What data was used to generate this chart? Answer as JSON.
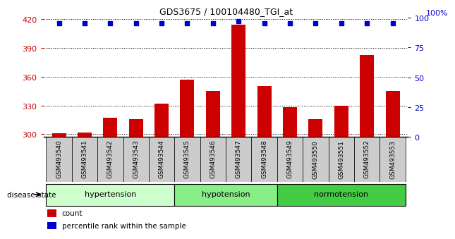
{
  "title": "GDS3675 / 100104480_TGI_at",
  "samples": [
    "GSM493540",
    "GSM493541",
    "GSM493542",
    "GSM493543",
    "GSM493544",
    "GSM493545",
    "GSM493546",
    "GSM493547",
    "GSM493548",
    "GSM493549",
    "GSM493550",
    "GSM493551",
    "GSM493552",
    "GSM493553"
  ],
  "counts": [
    301,
    302,
    317,
    316,
    332,
    357,
    345,
    414,
    350,
    328,
    316,
    330,
    383,
    345
  ],
  "percentiles": [
    95,
    95,
    95,
    95,
    95,
    95,
    95,
    97,
    95,
    95,
    95,
    95,
    95,
    95
  ],
  "groups": [
    {
      "label": "hypertension",
      "start": 0,
      "end": 5,
      "color": "#ccffcc"
    },
    {
      "label": "hypotension",
      "start": 5,
      "end": 9,
      "color": "#88ee88"
    },
    {
      "label": "normotension",
      "start": 9,
      "end": 14,
      "color": "#44cc44"
    }
  ],
  "ylim_left": [
    297,
    422
  ],
  "ylim_right": [
    0,
    100
  ],
  "yticks_left": [
    300,
    330,
    360,
    390,
    420
  ],
  "yticks_right": [
    0,
    25,
    50,
    75,
    100
  ],
  "bar_color": "#cc0000",
  "dot_color": "#0000cc",
  "background_color": "#ffffff",
  "label_color_left": "#cc0000",
  "label_color_right": "#0000cc",
  "legend_count_label": "count",
  "legend_pct_label": "percentile rank within the sample",
  "disease_state_label": "disease state",
  "xtick_bg": "#cccccc",
  "bar_bottom": 297
}
